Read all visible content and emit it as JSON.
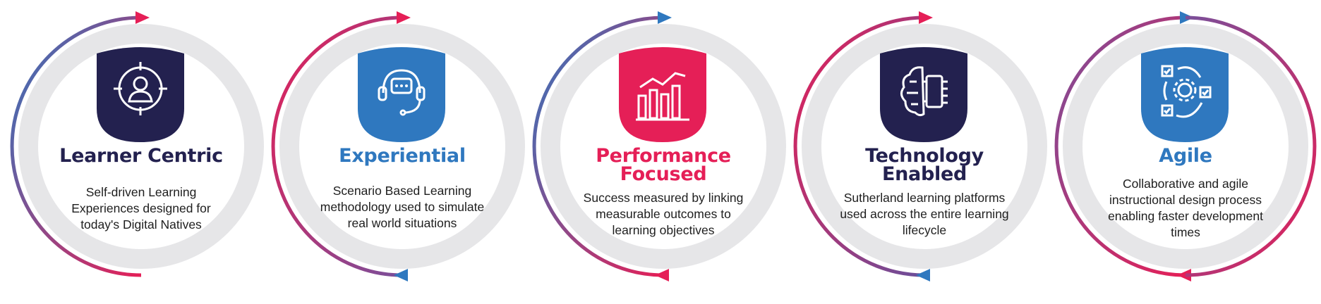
{
  "colors": {
    "navy": "#23214f",
    "blue": "#2f78bf",
    "pink": "#e51f57",
    "purple": "#7a4f9a",
    "ring": "#e6e6e8"
  },
  "cards": [
    {
      "title": "Learner Centric",
      "title_line2": "",
      "color": "#23214f",
      "icon": "learner-target-icon",
      "description": "Self-driven Learning Experiences designed for today's Digital Natives"
    },
    {
      "title": "Experiential",
      "title_line2": "",
      "color": "#2f78bf",
      "icon": "headset-chat-icon",
      "description": "Scenario Based Learning methodology used to simulate real world situations"
    },
    {
      "title": "Performance",
      "title_line2": "Focused",
      "color": "#e51f57",
      "icon": "bar-chart-trend-icon",
      "description": "Success measured by linking measurable outcomes to learning objectives"
    },
    {
      "title": "Technology",
      "title_line2": "Enabled",
      "color": "#23214f",
      "icon": "brain-chip-icon",
      "description": "Sutherland learning platforms used across the entire learning lifecycle"
    },
    {
      "title": "Agile",
      "title_line2": "",
      "color": "#2f78bf",
      "icon": "agile-process-icon",
      "description": "Collaborative and agile instructional design process enabling faster development times"
    }
  ]
}
